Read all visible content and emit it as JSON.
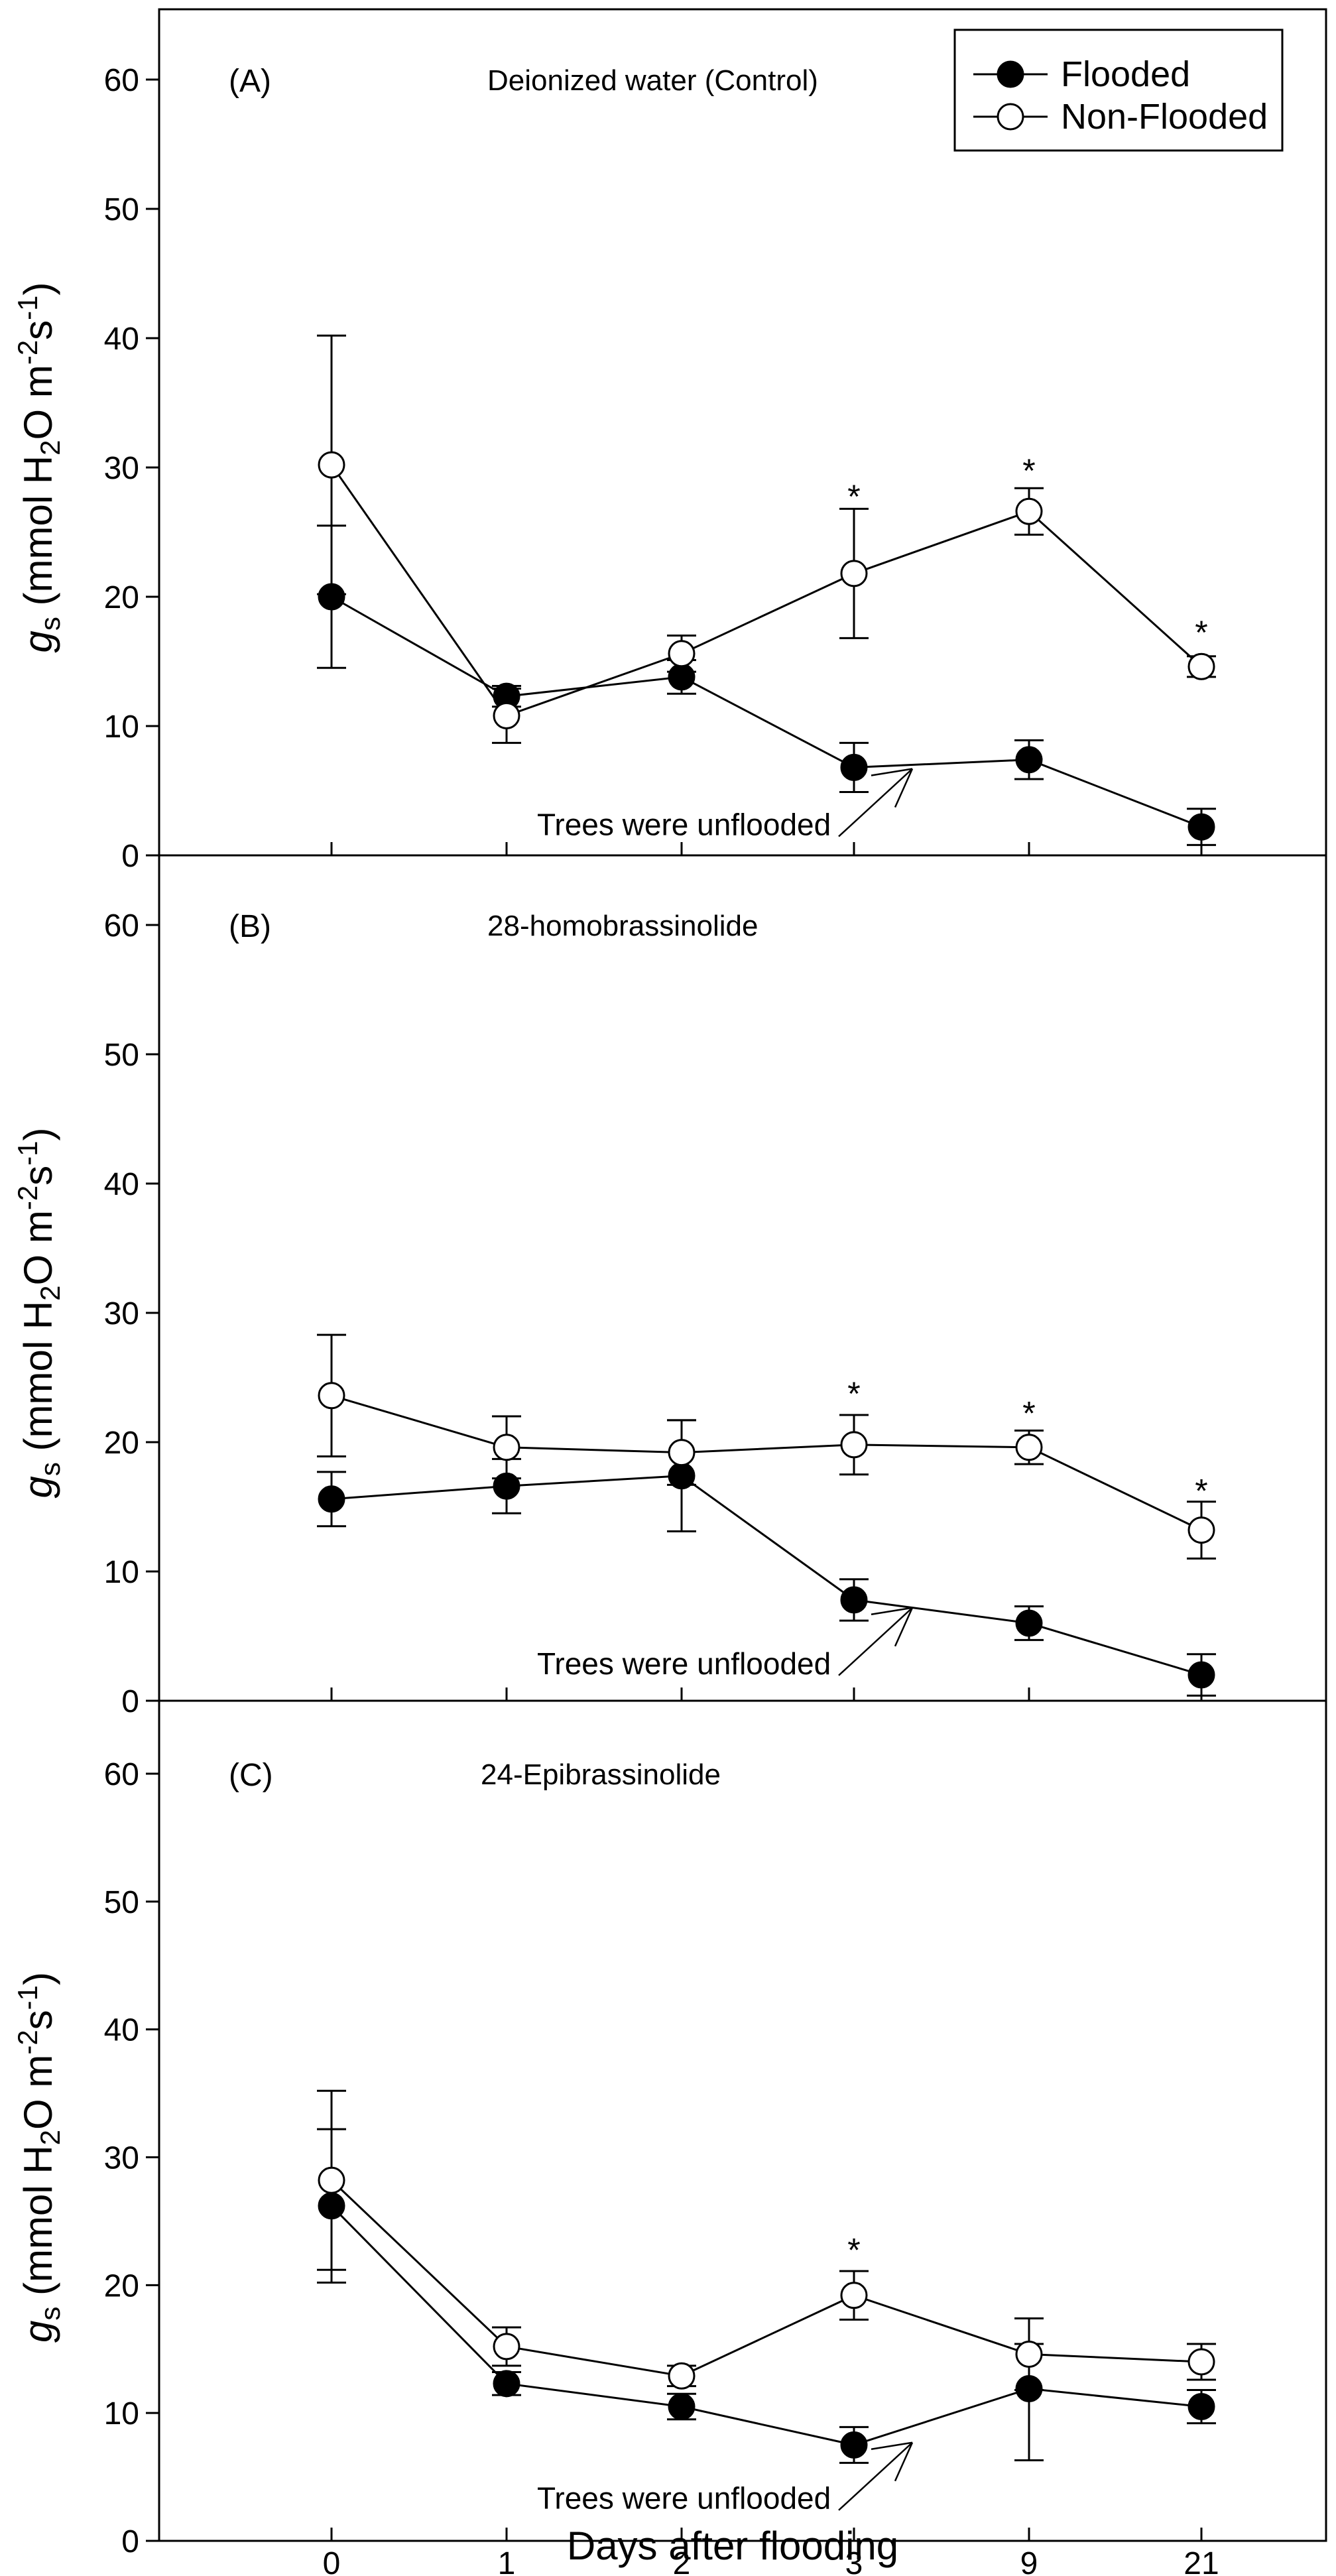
{
  "chart_data": {
    "type": "line",
    "xlabel": "Days after flooding",
    "x_categories": [
      "0",
      "1",
      "2",
      "3",
      "9",
      "21"
    ],
    "ylabel": {
      "symbol": "g",
      "symbol_sub": "s",
      "open": " (mmol H",
      "sub1": "2",
      "mid1": "O m",
      "sup1": "-2",
      "mid2": "s",
      "sup2": "-1",
      "close": ")"
    },
    "ylim": [
      0,
      60
    ],
    "yticks": [
      "0",
      "10",
      "20",
      "30",
      "40",
      "50",
      "60"
    ],
    "legend": {
      "position": "top-right",
      "entries": [
        {
          "name": "Flooded",
          "marker": "filled-circle"
        },
        {
          "name": "Non-Flooded",
          "marker": "open-circle"
        }
      ]
    },
    "colors": {
      "line": "#000000",
      "filled_marker": "#000000",
      "open_marker": "#ffffff"
    },
    "panels": [
      {
        "label": "(A)",
        "title": "Deionized water (Control)",
        "series": [
          {
            "name": "Flooded",
            "values": [
              20.0,
              12.3,
              13.8,
              6.8,
              7.4,
              2.2
            ],
            "err_up": [
              5.5,
              0.8,
              1.3,
              1.9,
              1.5,
              1.4
            ],
            "err_down": [
              5.5,
              0.8,
              1.3,
              1.9,
              1.5,
              1.4
            ]
          },
          {
            "name": "Non-Flooded",
            "values": [
              30.2,
              10.8,
              15.6,
              21.8,
              26.6,
              14.6
            ],
            "err_up": [
              10.0,
              2.1,
              1.4,
              5.0,
              1.8,
              0.8
            ],
            "err_down": [
              10.0,
              2.1,
              1.4,
              5.0,
              1.8,
              0.8
            ]
          }
        ],
        "significance": [
          {
            "x": "3",
            "value": 28.0,
            "text": "*"
          },
          {
            "x": "9",
            "value": 30.0,
            "text": "*"
          },
          {
            "x": "21",
            "value": 17.5,
            "text": "*"
          }
        ],
        "annotation": {
          "text": "Trees were unflooded",
          "anchor_x": "3",
          "anchor_y": 7
        }
      },
      {
        "label": "(B)",
        "title": "28-homobrassinolide",
        "series": [
          {
            "name": "Flooded",
            "values": [
              15.6,
              16.6,
              17.4,
              7.8,
              6.0,
              2.0
            ],
            "err_up": [
              2.1,
              2.1,
              4.3,
              1.6,
              1.3,
              1.6
            ],
            "err_down": [
              2.1,
              2.1,
              4.3,
              1.6,
              1.3,
              1.6
            ]
          },
          {
            "name": "Non-Flooded",
            "values": [
              23.6,
              19.6,
              19.2,
              19.8,
              19.6,
              13.2
            ],
            "err_up": [
              4.7,
              2.4,
              2.5,
              2.3,
              1.3,
              2.2
            ],
            "err_down": [
              4.7,
              2.4,
              2.5,
              2.3,
              1.3,
              2.2
            ]
          }
        ],
        "significance": [
          {
            "x": "3",
            "value": 24.0,
            "text": "*"
          },
          {
            "x": "9",
            "value": 22.5,
            "text": "*"
          },
          {
            "x": "21",
            "value": 16.5,
            "text": "*"
          }
        ],
        "annotation": {
          "text": "Trees were unflooded",
          "anchor_x": "3",
          "anchor_y": 7.5
        }
      },
      {
        "label": "(C)",
        "title": "24-Epibrassinolide",
        "series": [
          {
            "name": "Flooded",
            "values": [
              26.2,
              12.3,
              10.5,
              7.5,
              11.9,
              10.5
            ],
            "err_up": [
              6.0,
              0.9,
              1.0,
              1.4,
              3.5,
              1.3
            ],
            "err_down": [
              6.0,
              0.9,
              1.0,
              1.4,
              5.6,
              1.3
            ]
          },
          {
            "name": "Non-Flooded",
            "values": [
              28.2,
              15.2,
              12.9,
              19.2,
              14.6,
              14.0
            ],
            "err_up": [
              7.0,
              1.5,
              0.8,
              1.9,
              2.8,
              1.4
            ],
            "err_down": [
              7.0,
              1.5,
              0.8,
              1.9,
              2.8,
              1.4
            ]
          }
        ],
        "significance": [
          {
            "x": "3",
            "value": 23.0,
            "text": "*"
          }
        ],
        "annotation": {
          "text": "Trees were unflooded",
          "anchor_x": "3",
          "anchor_y": 8
        }
      }
    ]
  }
}
